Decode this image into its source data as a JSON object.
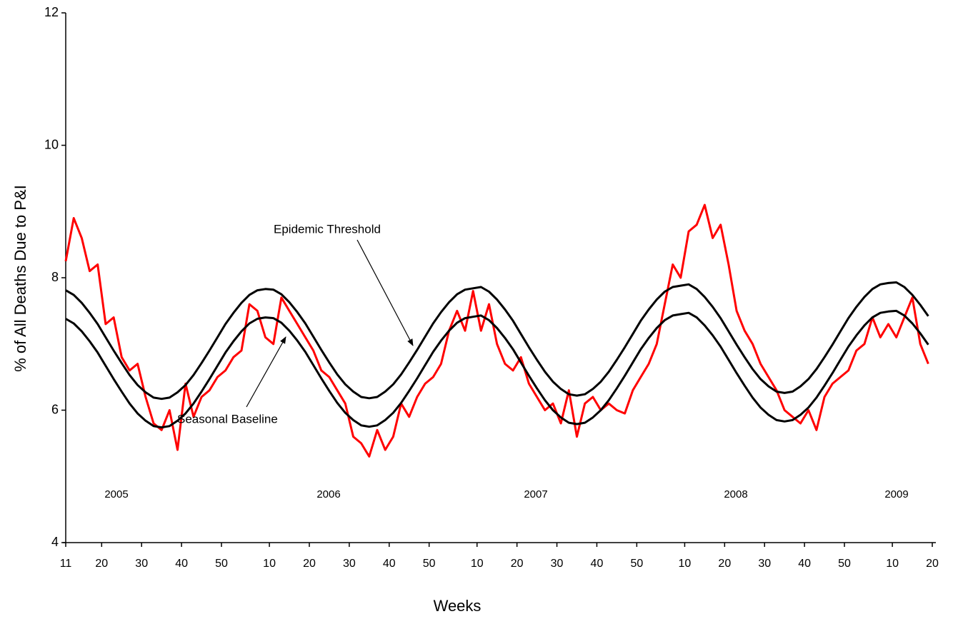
{
  "chart_data": {
    "type": "line",
    "y_label": "% of All Deaths Due to P&I",
    "x_label": "Weeks",
    "annotations": [
      "Epidemic Threshold",
      "Seasonal Baseline"
    ],
    "year_labels": [
      "2005",
      "2006",
      "2007",
      "2008",
      "2009"
    ],
    "x": [
      0,
      2,
      4,
      6,
      8,
      10,
      12,
      14,
      16,
      18,
      20,
      22,
      24,
      26,
      28,
      30,
      32,
      34,
      36,
      38,
      40,
      42,
      44,
      46,
      48,
      50,
      52,
      54,
      56,
      58,
      60,
      62,
      64,
      66,
      68,
      70,
      72,
      74,
      76,
      78,
      80,
      82,
      84,
      86,
      88,
      90,
      92,
      94,
      96,
      98,
      100,
      102,
      104,
      106,
      108,
      110,
      112,
      114,
      116,
      118,
      120,
      122,
      124,
      126,
      128,
      130,
      132,
      134,
      136,
      138,
      140,
      142,
      144,
      146,
      148,
      150,
      152,
      154,
      156,
      158,
      160,
      162,
      164,
      166,
      168,
      170,
      172,
      174,
      176,
      178,
      180,
      182,
      184,
      186,
      188,
      190,
      192,
      194,
      196,
      198,
      200,
      202,
      204,
      206,
      208,
      210,
      212,
      214,
      216
    ],
    "series": [
      {
        "color": "#ff0000",
        "values": [
          8.25,
          8.9,
          8.6,
          8.1,
          8.2,
          7.3,
          7.4,
          6.8,
          6.6,
          6.7,
          6.2,
          5.8,
          5.7,
          6.0,
          5.4,
          6.4,
          5.9,
          6.2,
          6.3,
          6.5,
          6.6,
          6.8,
          6.9,
          7.6,
          7.5,
          7.1,
          7.0,
          7.7,
          7.5,
          7.3,
          7.1,
          6.9,
          6.6,
          6.5,
          6.3,
          6.1,
          5.6,
          5.5,
          5.3,
          5.7,
          5.4,
          5.6,
          6.1,
          5.9,
          6.2,
          6.4,
          6.5,
          6.7,
          7.2,
          7.5,
          7.2,
          7.8,
          7.2,
          7.6,
          7.0,
          6.7,
          6.6,
          6.8,
          6.4,
          6.2,
          6.0,
          6.1,
          5.8,
          6.3,
          5.6,
          6.1,
          6.2,
          6.0,
          6.1,
          6.0,
          5.95,
          6.3,
          6.5,
          6.7,
          7.0,
          7.6,
          8.2,
          8.0,
          8.7,
          8.8,
          9.1,
          8.6,
          8.8,
          8.2,
          7.5,
          7.2,
          7.0,
          6.7,
          6.5,
          6.3,
          6.0,
          5.9,
          5.8,
          6.0,
          5.7,
          6.2,
          6.4,
          6.5,
          6.6,
          6.9,
          7.0,
          7.4,
          7.1,
          7.3,
          7.1,
          7.4,
          7.7,
          7.0,
          6.7
        ]
      },
      {
        "color": "#000000",
        "values": [
          7.81,
          7.74,
          7.62,
          7.47,
          7.3,
          7.1,
          6.9,
          6.71,
          6.53,
          6.38,
          6.27,
          6.19,
          6.17,
          6.19,
          6.27,
          6.38,
          6.53,
          6.71,
          6.9,
          7.1,
          7.3,
          7.47,
          7.62,
          7.74,
          7.81,
          7.83,
          7.82,
          7.75,
          7.63,
          7.48,
          7.31,
          7.11,
          6.91,
          6.72,
          6.54,
          6.39,
          6.28,
          6.2,
          6.18,
          6.2,
          6.28,
          6.39,
          6.54,
          6.72,
          6.91,
          7.11,
          7.31,
          7.48,
          7.63,
          7.75,
          7.82,
          7.84,
          7.86,
          7.79,
          7.67,
          7.52,
          7.35,
          7.15,
          6.95,
          6.76,
          6.58,
          6.43,
          6.32,
          6.24,
          6.22,
          6.24,
          6.32,
          6.43,
          6.58,
          6.76,
          6.95,
          7.15,
          7.35,
          7.52,
          7.67,
          7.79,
          7.86,
          7.88,
          7.9,
          7.83,
          7.71,
          7.56,
          7.39,
          7.19,
          6.99,
          6.8,
          6.62,
          6.47,
          6.36,
          6.28,
          6.26,
          6.28,
          6.36,
          6.47,
          6.62,
          6.8,
          6.99,
          7.19,
          7.39,
          7.56,
          7.71,
          7.83,
          7.9,
          7.92,
          7.93,
          7.86,
          7.74,
          7.59,
          7.42
        ]
      },
      {
        "color": "#000000",
        "values": [
          7.38,
          7.31,
          7.19,
          7.04,
          6.87,
          6.67,
          6.47,
          6.28,
          6.1,
          5.95,
          5.84,
          5.76,
          5.74,
          5.76,
          5.84,
          5.95,
          6.1,
          6.28,
          6.47,
          6.67,
          6.87,
          7.04,
          7.19,
          7.31,
          7.38,
          7.4,
          7.39,
          7.32,
          7.2,
          7.05,
          6.88,
          6.68,
          6.48,
          6.29,
          6.11,
          5.96,
          5.85,
          5.77,
          5.75,
          5.77,
          5.85,
          5.96,
          6.11,
          6.29,
          6.48,
          6.68,
          6.88,
          7.05,
          7.2,
          7.32,
          7.39,
          7.41,
          7.43,
          7.36,
          7.24,
          7.09,
          6.92,
          6.72,
          6.52,
          6.33,
          6.15,
          6.0,
          5.89,
          5.81,
          5.79,
          5.81,
          5.89,
          6.0,
          6.15,
          6.33,
          6.52,
          6.72,
          6.92,
          7.09,
          7.24,
          7.36,
          7.43,
          7.45,
          7.47,
          7.4,
          7.28,
          7.13,
          6.96,
          6.76,
          6.56,
          6.37,
          6.19,
          6.04,
          5.93,
          5.85,
          5.83,
          5.85,
          5.93,
          6.04,
          6.19,
          6.37,
          6.56,
          6.76,
          6.96,
          7.13,
          7.28,
          7.4,
          7.47,
          7.49,
          7.5,
          7.43,
          7.31,
          7.16,
          6.99
        ]
      }
    ],
    "xlim": [
      0,
      217
    ],
    "xticks": [
      {
        "value": 0,
        "label": "11"
      },
      {
        "value": 9,
        "label": "20"
      },
      {
        "value": 19,
        "label": "30"
      },
      {
        "value": 29,
        "label": "40"
      },
      {
        "value": 39,
        "label": "50"
      },
      {
        "value": 51,
        "label": "10"
      },
      {
        "value": 61,
        "label": "20"
      },
      {
        "value": 71,
        "label": "30"
      },
      {
        "value": 81,
        "label": "40"
      },
      {
        "value": 91,
        "label": "50"
      },
      {
        "value": 103,
        "label": "10"
      },
      {
        "value": 113,
        "label": "20"
      },
      {
        "value": 123,
        "label": "30"
      },
      {
        "value": 133,
        "label": "40"
      },
      {
        "value": 143,
        "label": "50"
      },
      {
        "value": 155,
        "label": "10"
      },
      {
        "value": 165,
        "label": "20"
      },
      {
        "value": 175,
        "label": "30"
      },
      {
        "value": 185,
        "label": "40"
      },
      {
        "value": 195,
        "label": "50"
      },
      {
        "value": 207,
        "label": "10"
      },
      {
        "value": 217,
        "label": "20"
      }
    ],
    "ylim": [
      4,
      12
    ],
    "yticks": [
      4,
      6,
      8,
      10,
      12
    ],
    "grid": false
  }
}
